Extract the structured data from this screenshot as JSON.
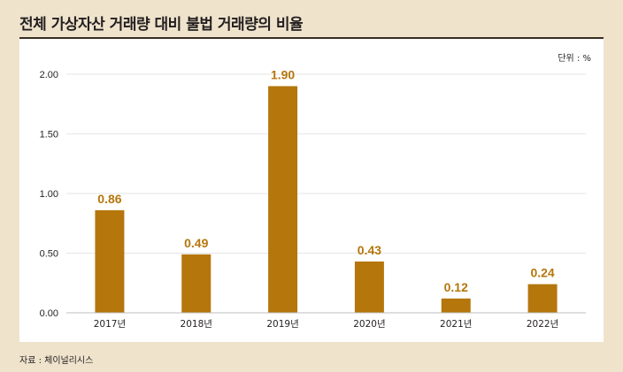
{
  "title": "전체 가상자산 거래량 대비 불법 거래량의 비율",
  "unit_note": "단위 : %",
  "source_note": "자료 : 체이널리시스",
  "colors": {
    "bar": "#b5760c",
    "label": "#b5760c",
    "background": "#efe3cc",
    "panel": "#ffffff",
    "gridline": "#e6e6e6"
  },
  "chart_data": {
    "type": "bar",
    "title": "전체 가상자산 거래량 대비 불법 거래량의 비율",
    "xlabel": "",
    "ylabel": "",
    "categories": [
      "2017년",
      "2018년",
      "2019년",
      "2020년",
      "2021년",
      "2022년"
    ],
    "values": [
      0.86,
      0.49,
      1.9,
      0.43,
      0.12,
      0.24
    ],
    "value_labels": [
      "0.86",
      "0.49",
      "1.90",
      "0.43",
      "0.12",
      "0.24"
    ],
    "ylim": [
      0,
      2.0
    ],
    "yticks": [
      "0.00",
      "0.50",
      "1.00",
      "1.50",
      "2.00"
    ],
    "grid": true,
    "legend": "none"
  }
}
